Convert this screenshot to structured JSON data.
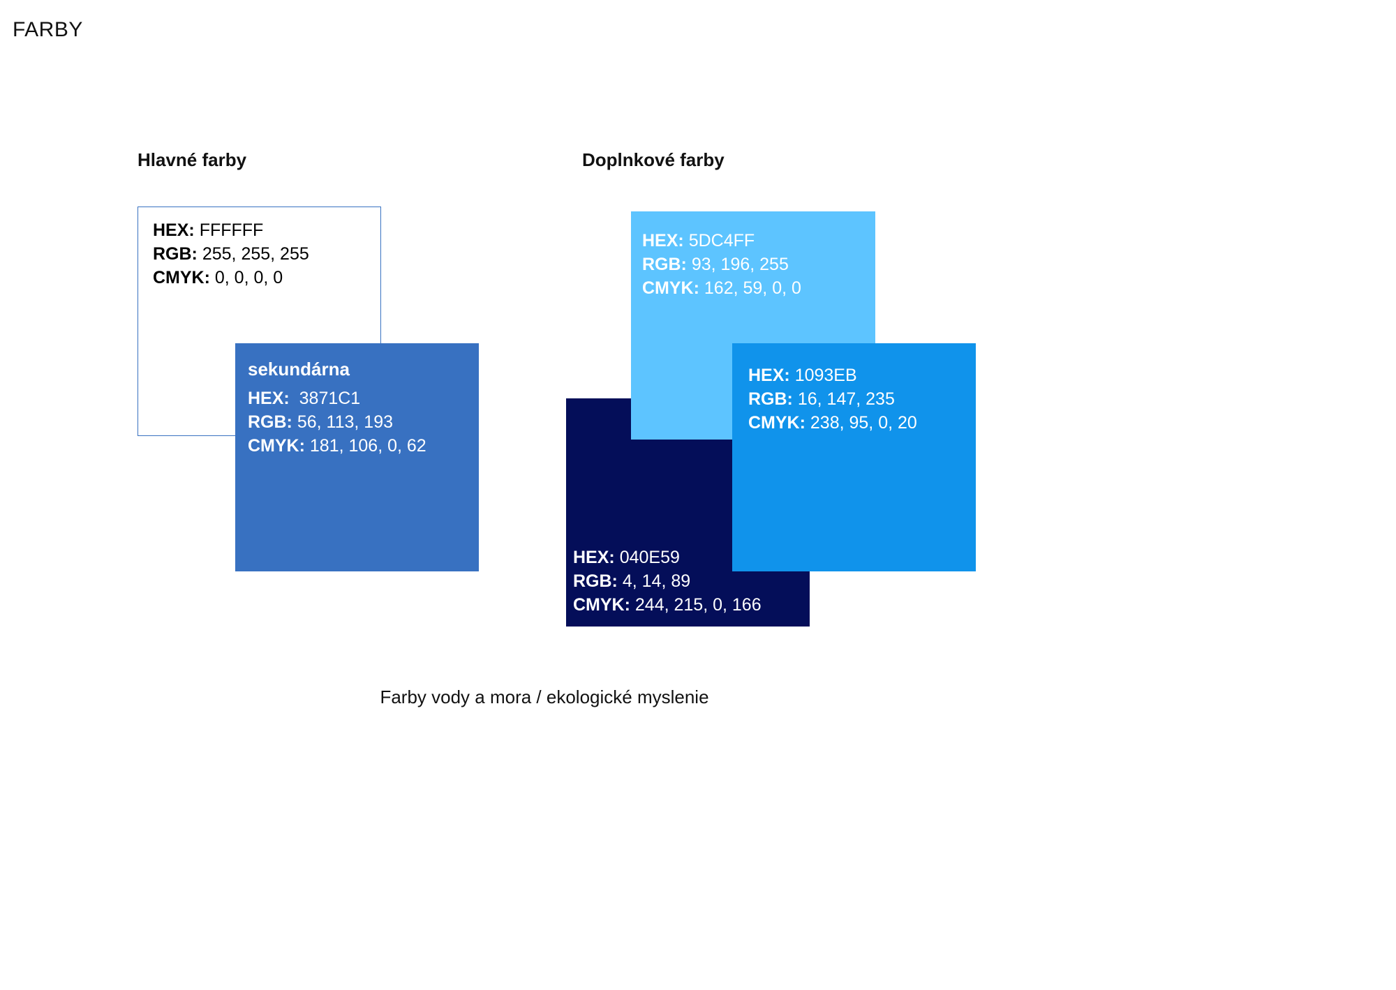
{
  "page_title": "FARBY",
  "primary": {
    "title": "Hlavné farby",
    "white": {
      "hex_label": "HEX:",
      "hex": "FFFFFF",
      "rgb_label": "RGB:",
      "rgb": "255, 255, 255",
      "cmyk_label": "CMYK:",
      "cmyk": "0, 0, 0, 0",
      "color": "#FFFFFF",
      "border_color": "#3871C1",
      "text_color": "#000000"
    },
    "secondary": {
      "name": "sekundárna",
      "hex_label": "HEX:",
      "hex": "3871C1",
      "rgb_label": "RGB:",
      "rgb": "56, 113, 193",
      "cmyk_label": "CMYK:",
      "cmyk": "181, 106, 0, 62",
      "color": "#3871C1",
      "text_color": "#FFFFFF"
    }
  },
  "complementary": {
    "title": "Doplnkové farby",
    "light_blue": {
      "hex_label": "HEX:",
      "hex": "5DC4FF",
      "rgb_label": "RGB:",
      "rgb": "93, 196, 255",
      "cmyk_label": "CMYK:",
      "cmyk": "162, 59, 0, 0",
      "color": "#5DC4FF",
      "text_color": "#FFFFFF"
    },
    "navy": {
      "hex_label": "HEX:",
      "hex": "040E59",
      "rgb_label": "RGB:",
      "rgb": "4, 14, 89",
      "cmyk_label": "CMYK:",
      "cmyk": "244, 215, 0, 166",
      "color": "#040E59",
      "text_color": "#FFFFFF"
    },
    "blue": {
      "hex_label": "HEX:",
      "hex": "1093EB",
      "rgb_label": "RGB:",
      "rgb": "16, 147, 235",
      "cmyk_label": "CMYK:",
      "cmyk": "238, 95, 0, 20",
      "color": "#1093EB",
      "text_color": "#FFFFFF"
    }
  },
  "caption": "Farby vody a mora / ekologické myslenie"
}
